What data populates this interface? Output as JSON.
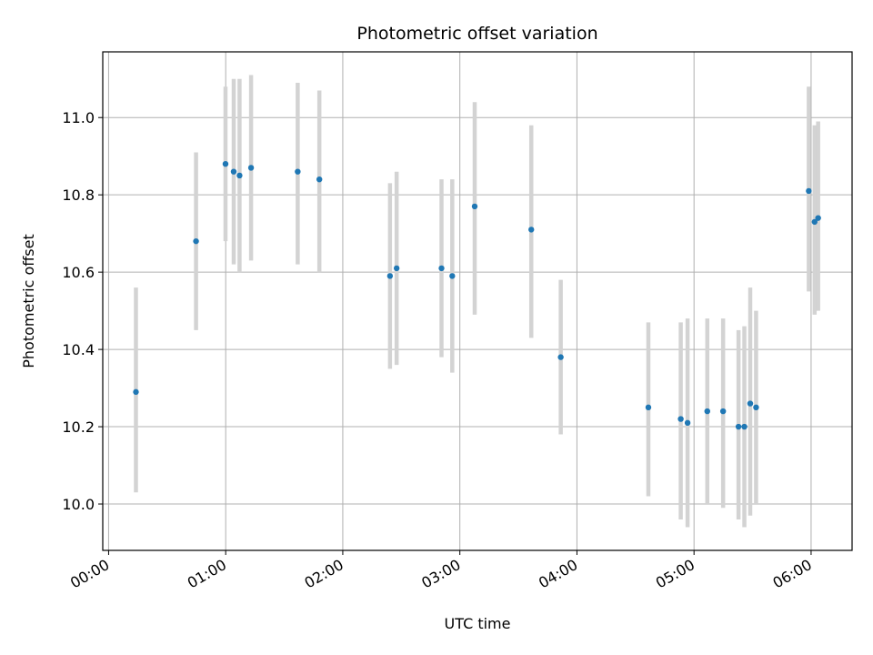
{
  "chart_data": {
    "type": "scatter",
    "title": "Photometric offset variation",
    "xlabel": "UTC time",
    "ylabel": "Photometric offset",
    "x_unit": "minutes",
    "xlim": [
      -3,
      381
    ],
    "ylim": [
      9.88,
      11.17
    ],
    "xticks": [
      {
        "value": 0,
        "label": "00:00"
      },
      {
        "value": 60,
        "label": "01:00"
      },
      {
        "value": 120,
        "label": "02:00"
      },
      {
        "value": 180,
        "label": "03:00"
      },
      {
        "value": 240,
        "label": "04:00"
      },
      {
        "value": 300,
        "label": "05:00"
      },
      {
        "value": 360,
        "label": "06:00"
      }
    ],
    "yticks": [
      {
        "value": 10.0,
        "label": "10.0"
      },
      {
        "value": 10.2,
        "label": "10.2"
      },
      {
        "value": 10.4,
        "label": "10.4"
      },
      {
        "value": 10.6,
        "label": "10.6"
      },
      {
        "value": 10.8,
        "label": "10.8"
      },
      {
        "value": 11.0,
        "label": "11.0"
      }
    ],
    "grid": true,
    "colors": {
      "point": "#1f77b4",
      "errorbar": "#d3d3d3",
      "grid": "#b0b0b0"
    },
    "points": [
      {
        "time": "00:14",
        "x": 14.0,
        "y": 10.29,
        "ylow": 10.03,
        "yhigh": 10.56
      },
      {
        "time": "00:45",
        "x": 44.8,
        "y": 10.68,
        "ylow": 10.45,
        "yhigh": 10.91
      },
      {
        "time": "01:00",
        "x": 59.9,
        "y": 10.88,
        "ylow": 10.68,
        "yhigh": 11.08
      },
      {
        "time": "01:04",
        "x": 64.1,
        "y": 10.86,
        "ylow": 10.62,
        "yhigh": 11.1
      },
      {
        "time": "01:07",
        "x": 67.1,
        "y": 10.85,
        "ylow": 10.6,
        "yhigh": 11.1
      },
      {
        "time": "01:13",
        "x": 73.0,
        "y": 10.87,
        "ylow": 10.63,
        "yhigh": 11.11
      },
      {
        "time": "01:37",
        "x": 96.9,
        "y": 10.86,
        "ylow": 10.62,
        "yhigh": 11.09
      },
      {
        "time": "01:48",
        "x": 108.0,
        "y": 10.84,
        "ylow": 10.6,
        "yhigh": 11.07
      },
      {
        "time": "02:24",
        "x": 144.2,
        "y": 10.59,
        "ylow": 10.35,
        "yhigh": 10.83
      },
      {
        "time": "02:28",
        "x": 147.6,
        "y": 10.61,
        "ylow": 10.36,
        "yhigh": 10.86
      },
      {
        "time": "02:51",
        "x": 170.6,
        "y": 10.61,
        "ylow": 10.38,
        "yhigh": 10.84
      },
      {
        "time": "02:56",
        "x": 176.1,
        "y": 10.59,
        "ylow": 10.34,
        "yhigh": 10.84
      },
      {
        "time": "03:08",
        "x": 187.6,
        "y": 10.77,
        "ylow": 10.49,
        "yhigh": 11.04
      },
      {
        "time": "03:37",
        "x": 216.6,
        "y": 10.71,
        "ylow": 10.43,
        "yhigh": 10.98
      },
      {
        "time": "03:52",
        "x": 231.7,
        "y": 10.38,
        "ylow": 10.18,
        "yhigh": 10.58
      },
      {
        "time": "04:37",
        "x": 276.6,
        "y": 10.25,
        "ylow": 10.02,
        "yhigh": 10.47
      },
      {
        "time": "04:53",
        "x": 293.2,
        "y": 10.22,
        "ylow": 9.96,
        "yhigh": 10.47
      },
      {
        "time": "04:57",
        "x": 296.7,
        "y": 10.21,
        "ylow": 9.94,
        "yhigh": 10.48
      },
      {
        "time": "05:07",
        "x": 306.8,
        "y": 10.24,
        "ylow": 10.0,
        "yhigh": 10.48
      },
      {
        "time": "05:15",
        "x": 314.9,
        "y": 10.24,
        "ylow": 9.99,
        "yhigh": 10.48
      },
      {
        "time": "05:23",
        "x": 322.8,
        "y": 10.2,
        "ylow": 9.96,
        "yhigh": 10.45
      },
      {
        "time": "05:26",
        "x": 325.8,
        "y": 10.2,
        "ylow": 9.94,
        "yhigh": 10.46
      },
      {
        "time": "05:29",
        "x": 328.8,
        "y": 10.26,
        "ylow": 9.97,
        "yhigh": 10.56
      },
      {
        "time": "05:32",
        "x": 331.8,
        "y": 10.25,
        "ylow": 10.0,
        "yhigh": 10.5
      },
      {
        "time": "05:59",
        "x": 358.8,
        "y": 10.81,
        "ylow": 10.55,
        "yhigh": 11.08
      },
      {
        "time": "06:02",
        "x": 361.8,
        "y": 10.73,
        "ylow": 10.49,
        "yhigh": 10.98
      },
      {
        "time": "06:04",
        "x": 363.6,
        "y": 10.74,
        "ylow": 10.5,
        "yhigh": 10.99
      }
    ]
  }
}
